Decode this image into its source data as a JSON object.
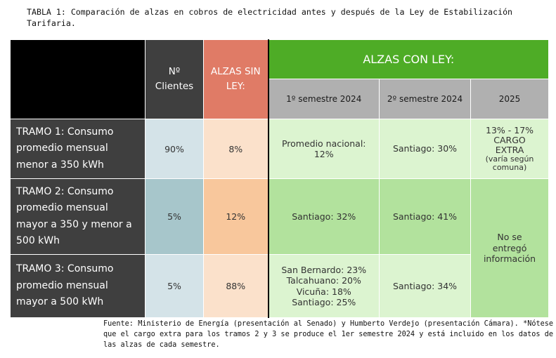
{
  "caption": "TABLA 1: Comparación de alzas en cobros de electricidad antes y después de la Ley de Estabilización Tarifaria.",
  "header": {
    "clientes": "Nº Clientes",
    "sin_ley": "ALZAS SIN LEY:",
    "con_ley": "ALZAS CON LEY:",
    "sem1": "1º semestre 2024",
    "sem2": "2º semestre 2024",
    "y2025": "2025"
  },
  "rows": [
    {
      "tramo": "TRAMO 1: Consumo promedio mensual menor a 350 kWh",
      "clientes": "90%",
      "sin_ley": "8%",
      "sem1": [
        "Promedio nacional:",
        "12%"
      ],
      "sem2": "Santiago: 30%",
      "y2025": [
        "13% - 17%",
        "CARGO",
        "EXTRA"
      ],
      "y2025_note": [
        "(varía según",
        "comuna)"
      ]
    },
    {
      "tramo": "TRAMO 2: Consumo promedio mensual mayor a 350 y menor a 500 kWh",
      "clientes": "5%",
      "sin_ley": "12%",
      "sem1": "Santiago: 32%",
      "sem2": "Santiago: 41%",
      "y2025": [
        "No se",
        "entregó",
        "información"
      ]
    },
    {
      "tramo": "TRAMO 3: Consumo promedio mensual mayor a 500 kWh",
      "clientes": "5%",
      "sin_ley": "88%",
      "sem1": [
        "San Bernardo: 23%",
        "Talcahuano: 20%",
        "Vicuña: 18%",
        "Santiago: 25%"
      ],
      "sem2": "Santiago: 34%"
    }
  ],
  "footer": "Fuente: Ministerio de Energía (presentación al Senado) y Humberto Verdejo (presentación Cámara). *Nótese que el cargo extra para los tramos 2 y 3 se produce el 1er semestre 2024 y está incluido en los datos de las alzas de cada semestre.",
  "colors": {
    "header_black": "#000000",
    "clientes": "#3f3f3f",
    "sin_ley": "#e07b66",
    "con_ley": "#4eac26",
    "sub_header": "#b0b0b0",
    "green_light": "#dcf4d0",
    "green_dark": "#b2e29d"
  }
}
